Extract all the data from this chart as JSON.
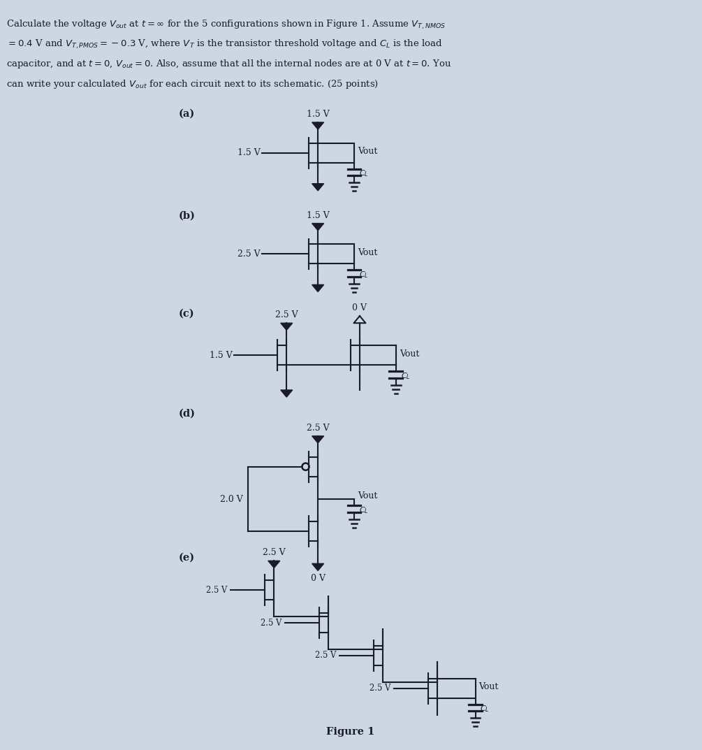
{
  "bg_color": "#ccd7e2",
  "text_color": "#1a1a2e",
  "fig_width": 10.05,
  "fig_height": 10.73,
  "header_lines": [
    "Calculate the voltage $V_{out}$ at $t = \\infty$ for the 5 configurations shown in Figure 1. Assume $V_{T,NMOS}$",
    "$= 0.4$ V and $V_{T,PMOS} = -0.3$ V, where $V_T$ is the transistor threshold voltage and $C_L$ is the load",
    "capacitor, and at $t = 0$, $V_{out} = 0$. Also, assume that all the internal nodes are at 0 V at $t = 0$. You",
    "can write your calculated $V_{out}$ for each circuit next to its schematic. (25 points)"
  ],
  "figure_label": "Figure 1"
}
